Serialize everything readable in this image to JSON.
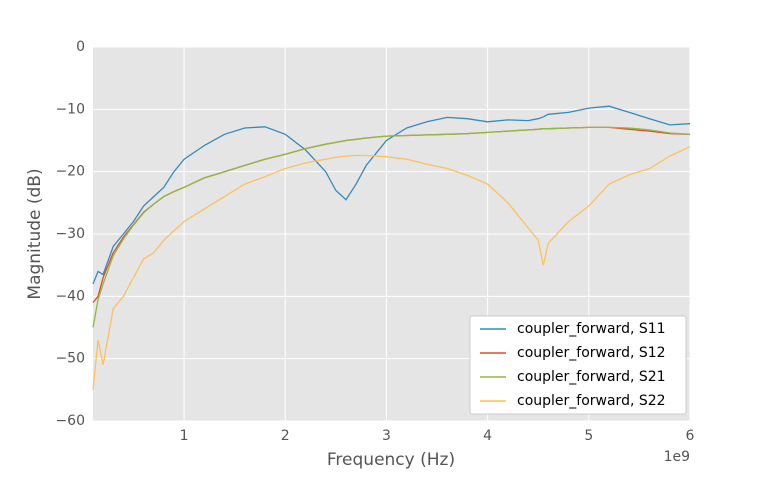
{
  "chart_data": {
    "type": "line",
    "xlabel": "Frequency (Hz)",
    "ylabel": "Magnitude (dB)",
    "x_offset_label": "1e9",
    "x": [
      0.1,
      0.15,
      0.2,
      0.3,
      0.4,
      0.5,
      0.6,
      0.7,
      0.8,
      0.9,
      1.0,
      1.2,
      1.4,
      1.6,
      1.8,
      2.0,
      2.2,
      2.4,
      2.5,
      2.6,
      2.7,
      2.8,
      3.0,
      3.2,
      3.4,
      3.6,
      3.8,
      4.0,
      4.2,
      4.4,
      4.5,
      4.55,
      4.6,
      4.8,
      5.0,
      5.2,
      5.4,
      5.6,
      5.8,
      6.0
    ],
    "series": [
      {
        "name": "coupler_forward, S11",
        "color": "#348abd",
        "values": [
          -38,
          -36,
          -36.5,
          -32,
          -30,
          -28,
          -25.5,
          -24,
          -22.5,
          -20,
          -18,
          -15.8,
          -14,
          -13,
          -12.8,
          -14,
          -16.5,
          -20,
          -23,
          -24.5,
          -22,
          -19,
          -15,
          -13,
          -12,
          -11.3,
          -11.5,
          -12,
          -11.7,
          -11.8,
          -11.5,
          -11.2,
          -10.8,
          -10.5,
          -9.8,
          -9.5,
          -10.5,
          -11.5,
          -12.5,
          -12.3
        ]
      },
      {
        "name": "coupler_forward, S12",
        "color": "#e24a33",
        "values": [
          -41,
          -40,
          -37,
          -33,
          -30.5,
          -28.5,
          -26.5,
          -25.2,
          -24,
          -23.2,
          -22.5,
          -21,
          -20,
          -19,
          -18,
          -17.2,
          -16.3,
          -15.6,
          -15.3,
          -15,
          -14.8,
          -14.6,
          -14.3,
          -14.2,
          -14.1,
          -14,
          -13.9,
          -13.7,
          -13.5,
          -13.3,
          -13.2,
          -13.1,
          -13.1,
          -13,
          -12.9,
          -12.9,
          -13.2,
          -13.5,
          -13.9,
          -14
        ]
      },
      {
        "name": "coupler_forward, S21",
        "color": "#8eba42",
        "values": [
          -45,
          -40.5,
          -38,
          -33.5,
          -30.8,
          -28.6,
          -26.6,
          -25.2,
          -24,
          -23.2,
          -22.5,
          -21,
          -20,
          -19,
          -18,
          -17.2,
          -16.3,
          -15.6,
          -15.3,
          -15,
          -14.8,
          -14.6,
          -14.3,
          -14.2,
          -14.1,
          -14,
          -13.9,
          -13.7,
          -13.5,
          -13.3,
          -13.2,
          -13.1,
          -13.1,
          -13,
          -12.9,
          -12.9,
          -13,
          -13.3,
          -13.8,
          -14
        ]
      },
      {
        "name": "coupler_forward, S22",
        "color": "#fbc15e",
        "values": [
          -55,
          -47,
          -51,
          -42,
          -40,
          -37,
          -34,
          -33,
          -31,
          -29.5,
          -28,
          -26,
          -24,
          -22,
          -20.8,
          -19.5,
          -18.6,
          -18,
          -17.7,
          -17.5,
          -17.4,
          -17.4,
          -17.6,
          -18,
          -18.8,
          -19.5,
          -20.6,
          -22,
          -25,
          -29,
          -31,
          -35,
          -31.5,
          -28,
          -25.5,
          -22,
          -20.5,
          -19.5,
          -17.5,
          -16
        ]
      }
    ],
    "xlim": [
      0.1,
      6
    ],
    "xticks": [
      1,
      2,
      3,
      4,
      5,
      6
    ],
    "ylim": [
      -60,
      0
    ],
    "yticks": [
      {
        "value": -60,
        "label": "−60"
      },
      {
        "value": -50,
        "label": "−50"
      },
      {
        "value": -40,
        "label": "−40"
      },
      {
        "value": -30,
        "label": "−30"
      },
      {
        "value": -20,
        "label": "−20"
      },
      {
        "value": -10,
        "label": "−10"
      },
      0
    ],
    "grid": true,
    "legend": "lower right"
  }
}
